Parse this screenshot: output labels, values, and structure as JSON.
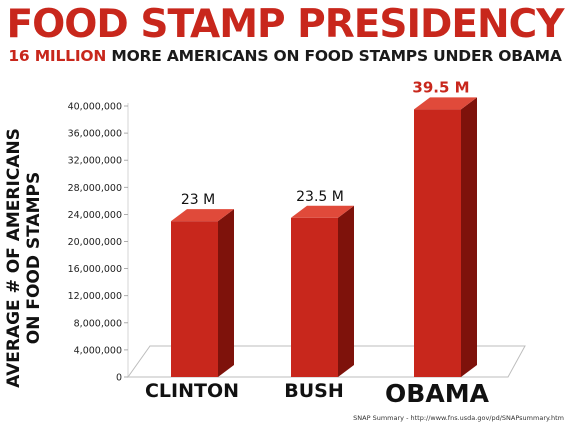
{
  "title": "FOOD STAMP PRESIDENCY",
  "subtitle": {
    "highlight": "16 MILLION",
    "rest": "MORE AMERICANS ON FOOD STAMPS UNDER OBAMA"
  },
  "source": "SNAP Summary - http://www.fns.usda.gov/pd/SNAPsummary.htm",
  "colors": {
    "bar_front": "#c8271c",
    "bar_side": "#7e120b",
    "bar_top": "#e04a3a",
    "title": "#c8271c"
  },
  "chart_data": {
    "type": "bar",
    "title": "FOOD STAMP PRESIDENCY",
    "subtitle": "16 MILLION MORE AMERICANS ON FOOD STAMPS UNDER OBAMA",
    "xlabel": "",
    "ylabel_lines": [
      "AVERAGE # OF AMERICANS",
      "ON FOOD STAMPS"
    ],
    "ylim": [
      0,
      40000000
    ],
    "yticks": [
      {
        "value": 0,
        "label": "0"
      },
      {
        "value": 4000000,
        "label": "4,000,000"
      },
      {
        "value": 8000000,
        "label": "8,000,000"
      },
      {
        "value": 12000000,
        "label": "12,000,000"
      },
      {
        "value": 16000000,
        "label": "16,000,000"
      },
      {
        "value": 20000000,
        "label": "20,000,000"
      },
      {
        "value": 24000000,
        "label": "24,000,000"
      },
      {
        "value": 28000000,
        "label": "28,000,000"
      },
      {
        "value": 32000000,
        "label": "32,000,000"
      },
      {
        "value": 36000000,
        "label": "36,000,000"
      },
      {
        "value": 40000000,
        "label": "40,000,000"
      }
    ],
    "categories": [
      "CLINTON",
      "BUSH",
      "OBAMA"
    ],
    "values": [
      23000000,
      23500000,
      39500000
    ],
    "data_labels": [
      "23 M",
      "23.5 M",
      "39.5 M"
    ],
    "grid": false,
    "legend": "none"
  }
}
